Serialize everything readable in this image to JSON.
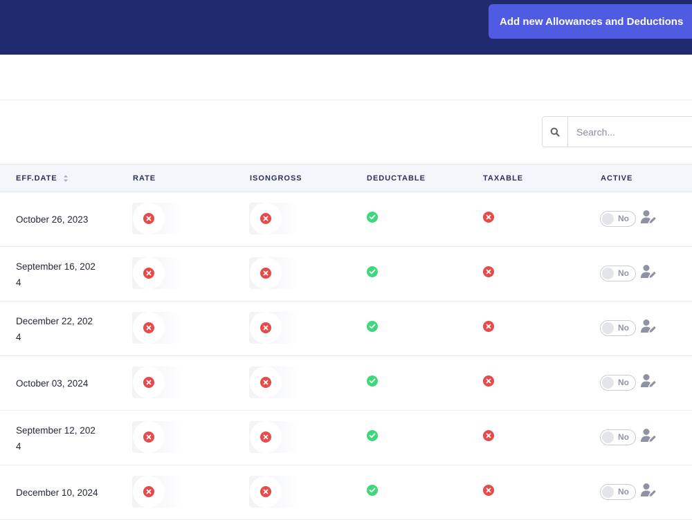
{
  "header": {
    "add_button_label": "Add new Allowances and Deductions"
  },
  "search": {
    "placeholder": "Search..."
  },
  "table": {
    "columns": [
      "EFF.DATE",
      "RATE",
      "ISONGROSS",
      "DEDUCTABLE",
      "TAXABLE",
      "ACTIVE"
    ],
    "rows": [
      {
        "eff_date": "October 26, 2023",
        "rate": false,
        "isongross": false,
        "deductable": true,
        "taxable": false,
        "active_label": "No"
      },
      {
        "eff_date": "September 16, 202\n4",
        "rate": false,
        "isongross": false,
        "deductable": true,
        "taxable": false,
        "active_label": "No"
      },
      {
        "eff_date": "December 22, 202\n4",
        "rate": false,
        "isongross": false,
        "deductable": true,
        "taxable": false,
        "active_label": "No"
      },
      {
        "eff_date": "October 03, 2024",
        "rate": false,
        "isongross": false,
        "deductable": true,
        "taxable": false,
        "active_label": "No"
      },
      {
        "eff_date": "September 12, 202\n4",
        "rate": false,
        "isongross": false,
        "deductable": true,
        "taxable": false,
        "active_label": "No"
      },
      {
        "eff_date": "December 10, 2024",
        "rate": false,
        "isongross": false,
        "deductable": true,
        "taxable": false,
        "active_label": "No"
      }
    ]
  },
  "icons": {
    "search": "search-icon",
    "sort": "sort-icon",
    "no": "x-circle-icon",
    "yes": "check-circle-icon",
    "edit": "user-edit-icon"
  },
  "colors": {
    "topbar": "#212a6e",
    "accent_button": "#4f5be0",
    "no": "#e74a4a",
    "yes": "#3fd77b",
    "header_bg": "#f3f6fb"
  }
}
